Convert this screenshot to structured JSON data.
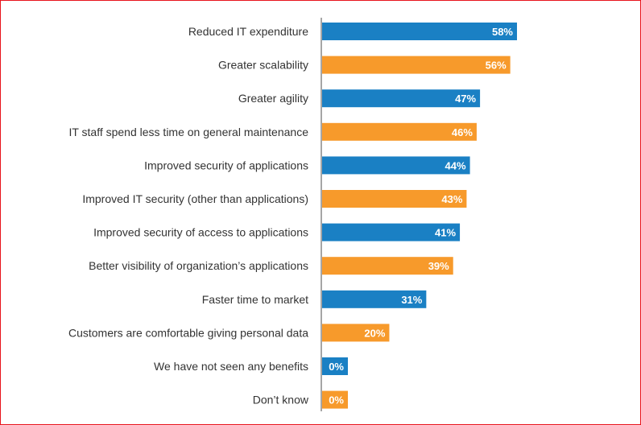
{
  "chart_data": {
    "type": "bar",
    "orientation": "horizontal",
    "categories": [
      "Reduced IT expenditure",
      "Greater scalability",
      "Greater agility",
      "IT staff spend less time on general maintenance",
      "Improved security of applications",
      "Improved IT security (other than applications)",
      "Improved security of access to applications",
      "Better visibility of organization’s applications",
      "Faster time to market",
      "Customers are comfortable giving personal data",
      "We have not seen any benefits",
      "Don’t know"
    ],
    "values": [
      58,
      56,
      47,
      46,
      44,
      43,
      41,
      39,
      31,
      20,
      0,
      0
    ],
    "data_labels": [
      "58%",
      "56%",
      "47%",
      "46%",
      "44%",
      "43%",
      "41%",
      "39%",
      "31%",
      "20%",
      "0%",
      "0%"
    ],
    "unit": "%",
    "colors": [
      "#1a80c4",
      "#f79a2b"
    ],
    "color_pattern": "alternating",
    "grid": false,
    "legend": "none"
  }
}
